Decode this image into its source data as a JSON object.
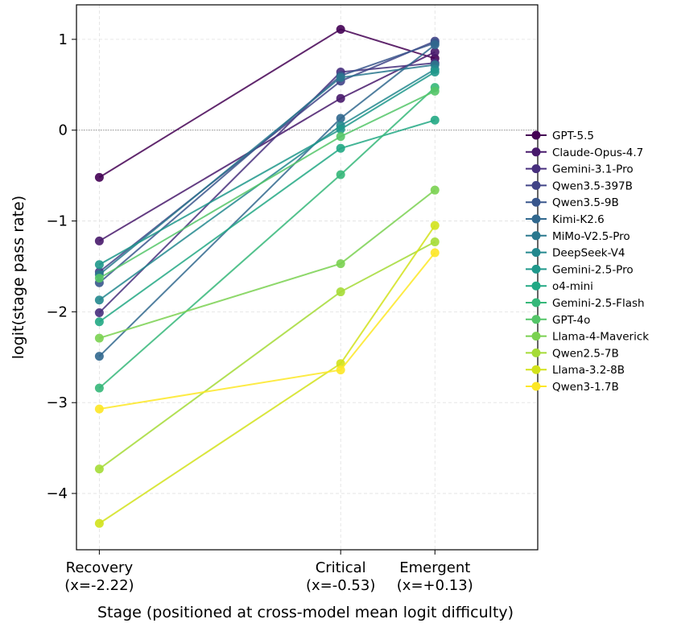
{
  "chart_data": {
    "type": "line",
    "xlabel": "Stage (positioned at cross-model mean logit difficulty)",
    "ylabel": "logit(stage pass rate)",
    "xlim": [
      -2.38,
      0.85
    ],
    "ylim": [
      -4.62,
      1.38
    ],
    "x": [
      -2.22,
      -0.53,
      0.13
    ],
    "x_tick_labels": [
      [
        "Recovery",
        "(x=-2.22)"
      ],
      [
        "Critical",
        "(x=-0.53)"
      ],
      [
        "Emergent",
        "(x=+0.13)"
      ]
    ],
    "y_ticks": [
      1,
      0,
      -1,
      -2,
      -3,
      -4
    ],
    "y_tick_labels": [
      "1",
      "0",
      "−1",
      "−2",
      "−3",
      "−4"
    ],
    "reference_line": 0,
    "grid": true,
    "legend_position": "right",
    "series": [
      {
        "name": "GPT-5.5",
        "color": "#440154",
        "values": [
          -0.52,
          1.11,
          0.79
        ]
      },
      {
        "name": "Claude-Opus-4.7",
        "color": "#481a6c",
        "values": [
          -1.22,
          0.35,
          0.86
        ]
      },
      {
        "name": "Gemini-3.1-Pro",
        "color": "#472f7d",
        "values": [
          -2.01,
          0.64,
          0.74
        ]
      },
      {
        "name": "Qwen3.5-397B",
        "color": "#414487",
        "values": [
          -1.56,
          0.54,
          0.98
        ]
      },
      {
        "name": "Qwen3.5-9B",
        "color": "#39568c",
        "values": [
          -1.68,
          0.6,
          0.96
        ]
      },
      {
        "name": "Kimi-K2.6",
        "color": "#31688e",
        "values": [
          -2.49,
          0.13,
          0.94
        ]
      },
      {
        "name": "MiMo-V2.5-Pro",
        "color": "#2a788e",
        "values": [
          -1.59,
          0.58,
          0.72
        ]
      },
      {
        "name": "DeepSeek-V4",
        "color": "#23888e",
        "values": [
          -1.87,
          0.05,
          0.67
        ]
      },
      {
        "name": "Gemini-2.5-Pro",
        "color": "#1f988b",
        "values": [
          -1.48,
          0.01,
          0.64
        ]
      },
      {
        "name": "o4-mini",
        "color": "#22a884",
        "values": [
          -2.11,
          -0.2,
          0.11
        ]
      },
      {
        "name": "Gemini-2.5-Flash",
        "color": "#35b779",
        "values": [
          -2.84,
          -0.49,
          0.47
        ]
      },
      {
        "name": "GPT-4o",
        "color": "#54c568",
        "values": [
          -1.63,
          -0.07,
          0.43
        ]
      },
      {
        "name": "Llama-4-Maverick",
        "color": "#7ad151",
        "values": [
          -2.29,
          -1.47,
          -0.66
        ]
      },
      {
        "name": "Qwen2.5-7B",
        "color": "#a5db36",
        "values": [
          -3.73,
          -1.78,
          -1.23
        ]
      },
      {
        "name": "Llama-3.2-8B",
        "color": "#d2e21b",
        "values": [
          -4.33,
          -2.57,
          -1.05
        ]
      },
      {
        "name": "Qwen3-1.7B",
        "color": "#fde725",
        "values": [
          -3.07,
          -2.64,
          -1.35
        ]
      }
    ]
  }
}
